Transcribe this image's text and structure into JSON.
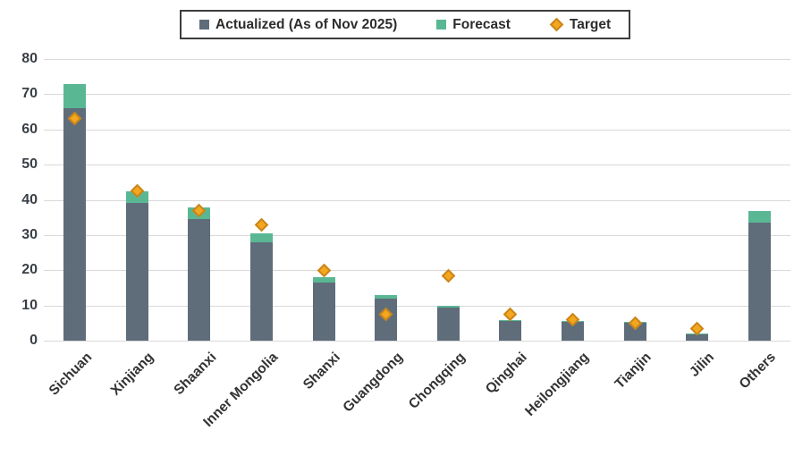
{
  "chart_data": {
    "type": "bar",
    "stacked": true,
    "title": "",
    "xlabel": "",
    "ylabel": "",
    "categories": [
      "Sichuan",
      "Xinjiang",
      "Shaanxi",
      "Inner Mongolia",
      "Shanxi",
      "Guangdong",
      "Chongqing",
      "Qinghai",
      "Heilongjiang",
      "Tianjin",
      "Jilin",
      "Others"
    ],
    "series": [
      {
        "name": "Actualized (As of Nov 2025)",
        "color": "#5f6c7a",
        "values": [
          66,
          39,
          34.5,
          28,
          16.5,
          12,
          9.3,
          5.5,
          5.3,
          5,
          1.8,
          33.5
        ]
      },
      {
        "name": "Forecast",
        "color": "#5ab794",
        "values": [
          7,
          3.5,
          3.3,
          2.5,
          1.5,
          1,
          0.7,
          0.3,
          0.3,
          0.3,
          0.3,
          3.3
        ]
      }
    ],
    "target_series": {
      "name": "Target",
      "marker": "diamond",
      "fill": "#f4a71e",
      "stroke": "#c9851a",
      "values": [
        63,
        42.5,
        37,
        33,
        20,
        7.5,
        18.5,
        7.5,
        6,
        5,
        3.5,
        null
      ]
    },
    "ylim": [
      0,
      80
    ],
    "yticks": [
      0,
      10,
      20,
      30,
      40,
      50,
      60,
      70,
      80
    ],
    "grid": "horizontal",
    "legend_position": "top"
  },
  "colors": {
    "background": "#ffffff",
    "grid": "#d9d9d9",
    "axis_text": "#3a3f45",
    "legend_border": "#3d3d3d"
  }
}
